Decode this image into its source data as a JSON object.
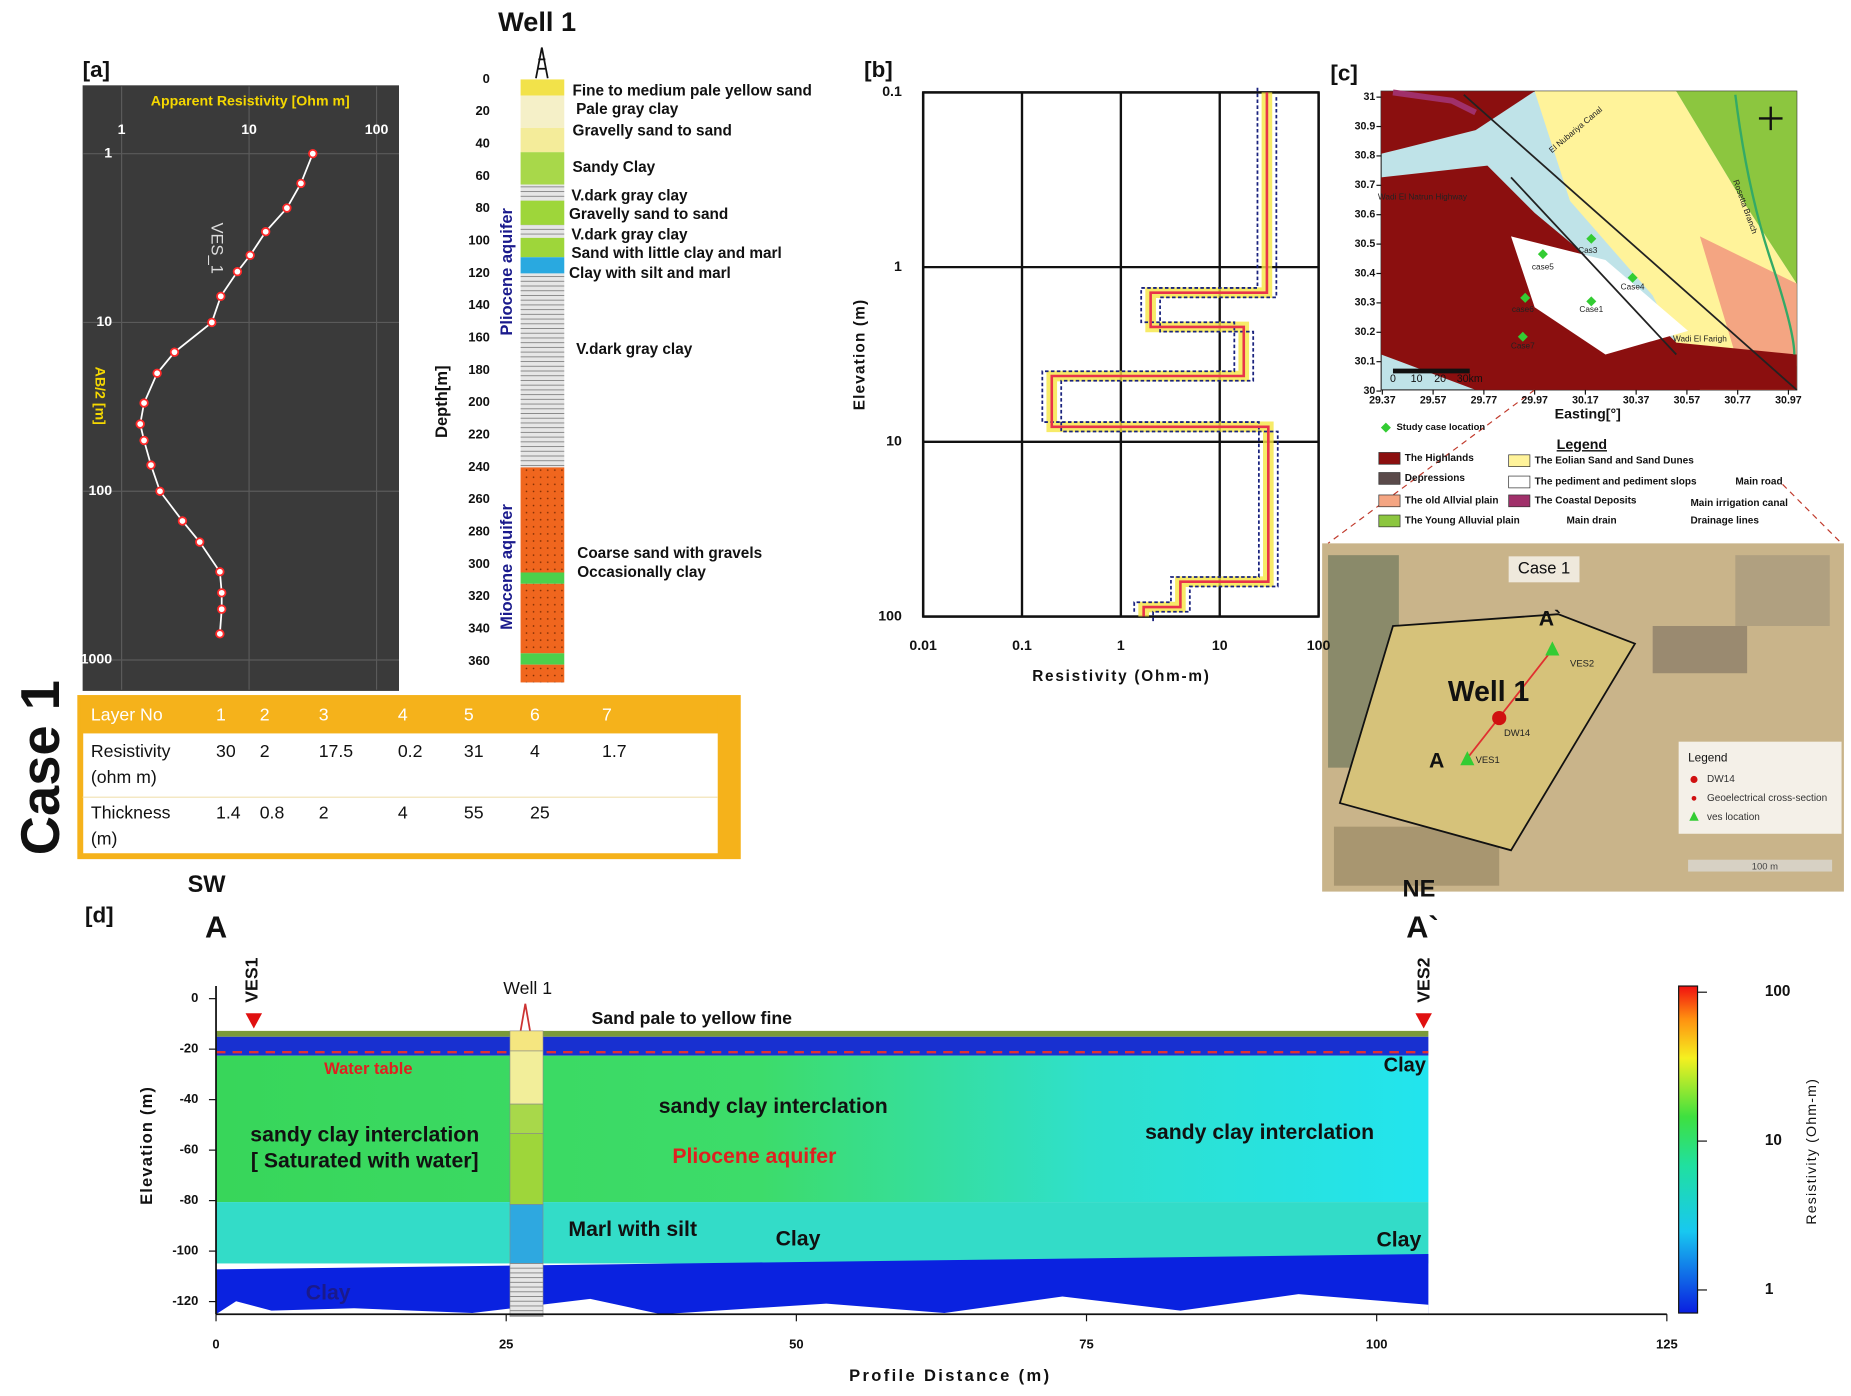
{
  "case_label": "Case 1",
  "panel_labels": {
    "a": "[a]",
    "b": "[b]",
    "c": "[c]",
    "d": "[d]"
  },
  "chart_data": [
    {
      "type": "line",
      "x_label": "Apparent Resistivity [Ohm m]",
      "y_label": "AB/2 [m]",
      "series_name": "VES_1",
      "log_x": true,
      "log_y": true,
      "inverted_y": true,
      "grid": true,
      "x": [
        31.6,
        25.5,
        19.8,
        13.5,
        10.2,
        8.1,
        6.0,
        5.1,
        2.6,
        1.9,
        1.5,
        1.4,
        1.5,
        1.7,
        2.0,
        3.0,
        4.1,
        5.9,
        6.1,
        6.1,
        5.9
      ],
      "values": [
        1,
        1.5,
        2.1,
        2.9,
        4,
        5,
        7,
        10,
        15,
        20,
        30,
        40,
        50,
        70,
        100,
        150,
        200,
        300,
        400,
        500,
        700
      ],
      "xlim": [
        0.5,
        150
      ],
      "ylim": [
        0.4,
        1500
      ],
      "xticks": [
        1,
        10,
        100
      ],
      "yticks": [
        1,
        10,
        100,
        1000
      ],
      "color": "#ff2a2a",
      "line_color": "#ffffff",
      "background": "#3a3a3a"
    },
    {
      "type": "step",
      "x_label": "Resistivity (Ohm-m)",
      "y_label": "Elevation (m)",
      "log_x": true,
      "log_y": true,
      "inverted_y": true,
      "grid": true,
      "xlim": [
        0.01,
        100
      ],
      "ylim": [
        0.1,
        100
      ],
      "xticks": [
        0.01,
        0.1,
        1,
        10,
        100
      ],
      "yticks": [
        0.1,
        1,
        10,
        100
      ],
      "color": "#e8334a",
      "band_color": "#f5e642"
    },
    {
      "type": "section",
      "x_label": "Profile Distance (m)",
      "y_label": "Elevation (m)",
      "xlim": [
        0,
        125
      ],
      "ylim": [
        -125,
        5
      ],
      "xticks": [
        0,
        25,
        50,
        75,
        100,
        125
      ],
      "yticks": [
        0,
        -20,
        -40,
        -60,
        -80,
        -100,
        -120
      ],
      "colorbar": {
        "label": "Resistivity (Ohm-m)",
        "log": true,
        "lim": [
          0.7,
          110
        ],
        "ticks": [
          1,
          10,
          100
        ]
      }
    }
  ],
  "table": {
    "header": "Layer No",
    "layers": [
      1,
      2,
      3,
      4,
      5,
      6,
      7
    ],
    "rows": [
      {
        "label": [
          "Resistivity",
          "(ohm m)"
        ],
        "values": [
          30,
          2,
          17.5,
          0.2,
          31,
          4,
          1.7
        ]
      },
      {
        "label": [
          "Thickness",
          "(m)"
        ],
        "values": [
          1.4,
          0.8,
          2,
          4,
          55,
          25
        ]
      }
    ]
  },
  "well_log": {
    "title": "Well 1",
    "axis_label": "Depth[m]",
    "ticks": [
      0,
      20,
      40,
      60,
      80,
      100,
      120,
      140,
      160,
      180,
      200,
      220,
      240,
      260,
      280,
      300,
      320,
      340,
      360
    ],
    "aquifers": [
      "Pliocene aquifer",
      "Miocene aquifer"
    ],
    "units": [
      "Fine to medium pale yellow sand",
      "Pale gray clay",
      "Gravelly sand to sand",
      "Sandy Clay",
      "V.dark gray clay",
      "Gravelly sand to sand",
      "V.dark gray clay",
      "Sand with little clay and marl",
      "Clay with silt and marl",
      "V.dark gray clay",
      "Coarse sand with gravels",
      "Occasionally clay"
    ]
  },
  "map": {
    "xlim": [
      29.37,
      30.97
    ],
    "ylim": [
      30,
      31
    ],
    "xticks": [
      29.37,
      29.57,
      29.77,
      29.97,
      30.17,
      30.37,
      30.57,
      30.77,
      30.97
    ],
    "yticks": [
      31,
      30.9,
      30.8,
      30.7,
      30.6,
      30.5,
      30.4,
      30.3,
      30.2,
      30.1,
      30
    ],
    "x_label": "Easting[°]",
    "scale": [
      "0",
      "10",
      "20",
      "30km"
    ],
    "places": [
      "El Nubariya Canal",
      "Wadi El Natrun Highway",
      "Rosetta Branch",
      "Wadi El Farigh",
      "Case1",
      "Cas3",
      "Case4",
      "case5",
      "case6",
      "Case7"
    ],
    "study_case": "Study case location",
    "legend_title": "Legend",
    "legend": [
      {
        "name": "The Highlands",
        "color": "#8b0f0f"
      },
      {
        "name": "Depressions",
        "color": "#5a4a4a"
      },
      {
        "name": "The old Allvial plain",
        "color": "#f4a582"
      },
      {
        "name": "The Young Alluvial plain",
        "color": "#8cc63f"
      },
      {
        "name": "The Eolian Sand and Sand Dunes",
        "color": "#fff39a"
      },
      {
        "name": "The pediment and pediment slops",
        "color": "#ffffff"
      },
      {
        "name": "The Coastal Deposits",
        "color": "#a0306a"
      }
    ],
    "line_legend": [
      "Main road",
      "Main irrigation canal",
      "Main drain",
      "Drainage lines"
    ]
  },
  "satellite": {
    "title": "Case 1",
    "well": "Well 1",
    "end_a2": "A`",
    "end_a": "A",
    "ves2": "VES2",
    "ves1": "VES1",
    "dw": "DW14",
    "legend_title": "Legend",
    "legend": [
      "DW14",
      "Geoelectrical cross-section",
      "ves location"
    ],
    "scale": "100 m"
  },
  "section": {
    "labels": [
      "SW",
      "A",
      "NE",
      "A`",
      "VES1",
      "VES2",
      "Well 1",
      "Sand pale to yellow fine",
      "Water table",
      "Clay",
      "sandy clay interclation",
      "sandy clay interclation",
      "[ Saturated with water]",
      "Pliocene aquifer",
      "sandy clay interclation",
      "Marl with silt",
      "Clay",
      "Clay",
      "Clay"
    ]
  }
}
